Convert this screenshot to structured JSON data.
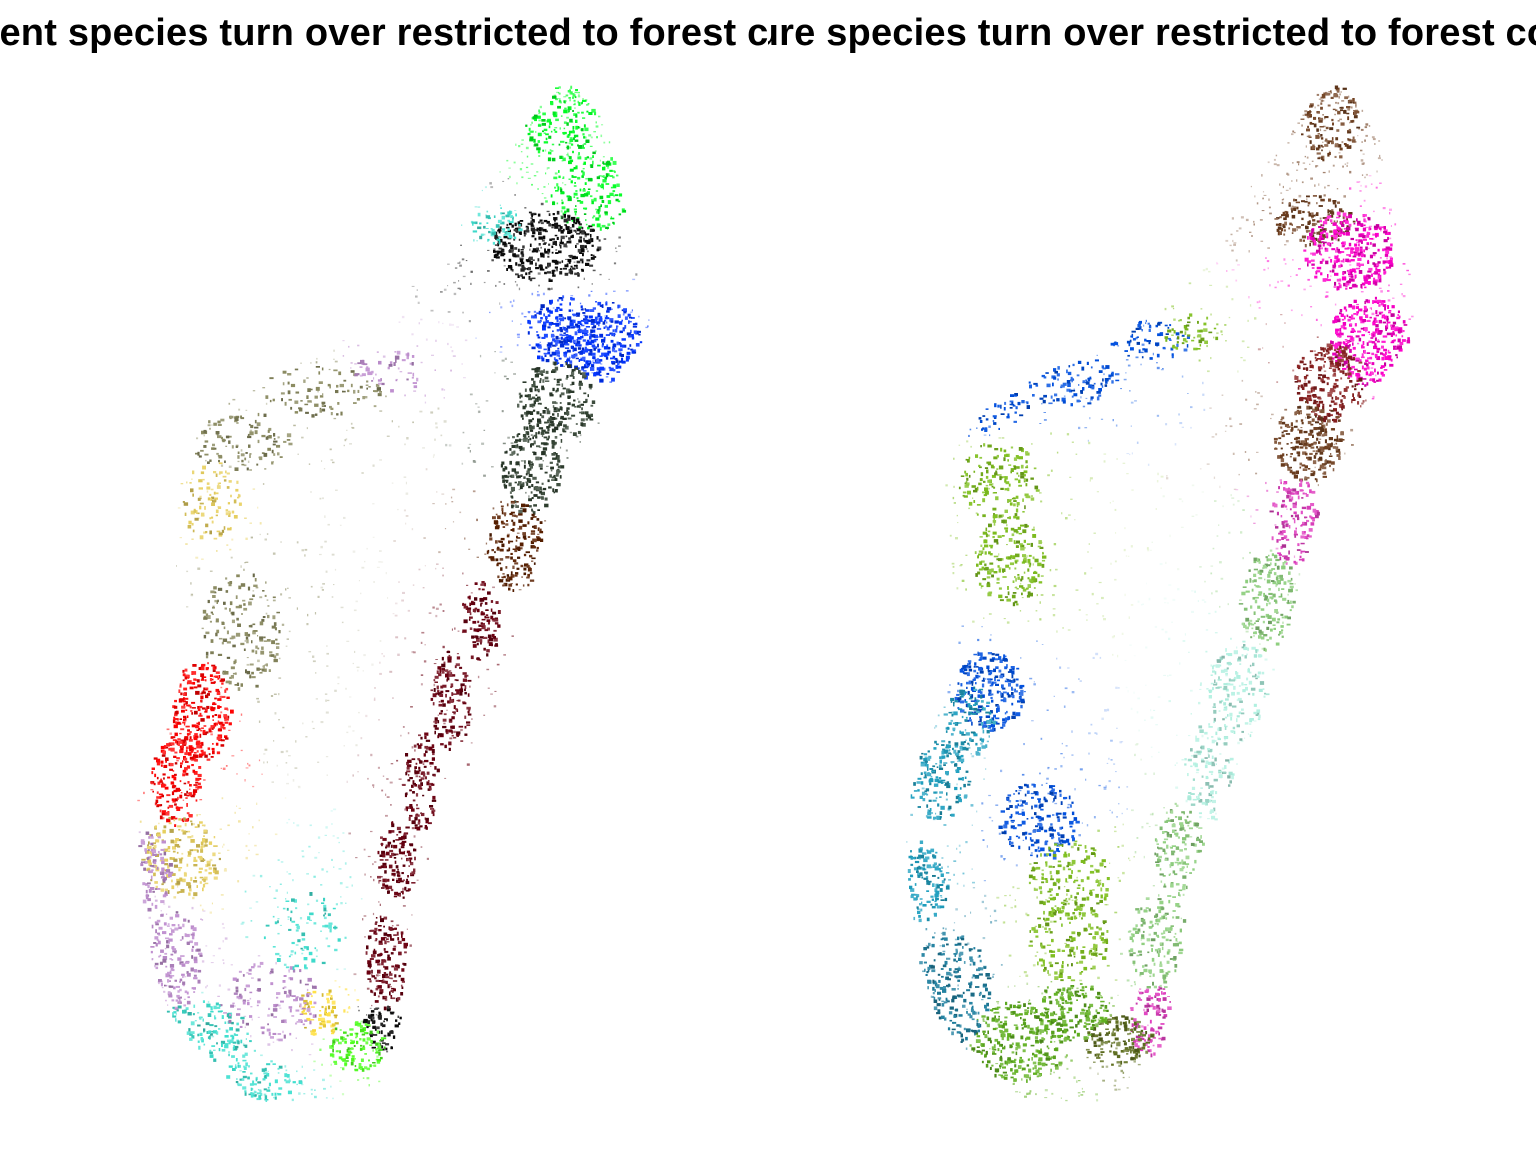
{
  "panels": [
    {
      "id": "left",
      "title": "Current species turn over restricted to forest cover",
      "palette": [
        "#00ff22",
        "#0a0a0a",
        "#0033ff",
        "#5a2000",
        "#6a0010",
        "#ff0000",
        "#e8d060",
        "#c090d0",
        "#40e0d0",
        "#8a8a60",
        "#50ff20",
        "#ffe040",
        "#304030"
      ]
    },
    {
      "id": "right",
      "title": "Future species turn over restricted to forest cover",
      "palette": [
        "#ff00cc",
        "#8a2020",
        "#704020",
        "#0050e0",
        "#80c020",
        "#b0f0e0",
        "#90d080",
        "#20a0c0",
        "#60b020",
        "#2080a0",
        "#e040c0",
        "#607020"
      ]
    }
  ]
}
